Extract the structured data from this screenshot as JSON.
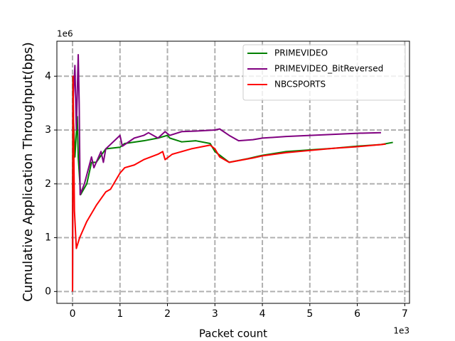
{
  "chart_data": {
    "type": "line",
    "x_label": "Packet count",
    "y_label": "Cumulative Application Throughput(bps)",
    "x_offset_label": "1e3",
    "y_offset_label": "1e6",
    "xlim": [
      -0.33,
      7.1
    ],
    "ylim": [
      -0.22,
      4.65
    ],
    "xticks": [
      0,
      1,
      2,
      3,
      4,
      5,
      6,
      7
    ],
    "yticks": [
      0,
      1,
      2,
      3,
      4
    ],
    "grid": true,
    "legend": "upper right",
    "series": [
      {
        "name": "PRIMEVIDEO",
        "color": "#008000",
        "x": [
          0,
          0.005,
          0.02,
          0.05,
          0.1,
          0.12,
          0.17,
          0.3,
          0.4,
          0.5,
          0.7,
          1.0,
          1.1,
          1.5,
          1.8,
          2.0,
          2.05,
          2.3,
          2.6,
          2.9,
          3.0,
          3.3,
          3.7,
          4.0,
          4.5,
          5.0,
          5.5,
          6.0,
          6.5,
          6.75
        ],
        "values": [
          0,
          4.0,
          3.2,
          2.5,
          3.25,
          2.5,
          1.8,
          2.0,
          2.4,
          2.4,
          2.65,
          2.68,
          2.75,
          2.8,
          2.85,
          2.9,
          2.85,
          2.78,
          2.8,
          2.75,
          2.6,
          2.4,
          2.47,
          2.53,
          2.6,
          2.63,
          2.66,
          2.7,
          2.73,
          2.77
        ]
      },
      {
        "name": "PRIMEVIDEO_BitReversed",
        "color": "#800080",
        "x": [
          0,
          0.01,
          0.05,
          0.08,
          0.12,
          0.14,
          0.16,
          0.25,
          0.4,
          0.45,
          0.6,
          0.65,
          0.7,
          1.0,
          1.05,
          1.3,
          1.5,
          1.6,
          1.8,
          1.95,
          2.05,
          2.3,
          2.6,
          3.0,
          3.1,
          3.3,
          3.5,
          3.8,
          4.0,
          4.5,
          5.0,
          5.5,
          6.0,
          6.5
        ],
        "values": [
          0,
          3.5,
          4.2,
          3.0,
          4.4,
          3.5,
          1.8,
          2.0,
          2.5,
          2.3,
          2.6,
          2.4,
          2.65,
          2.9,
          2.7,
          2.85,
          2.9,
          2.95,
          2.85,
          2.97,
          2.9,
          2.97,
          2.98,
          3.0,
          3.02,
          2.9,
          2.8,
          2.82,
          2.85,
          2.88,
          2.9,
          2.92,
          2.94,
          2.95
        ]
      },
      {
        "name": "NBCSPORTS",
        "color": "#ff0000",
        "x": [
          0,
          0.01,
          0.04,
          0.08,
          0.15,
          0.2,
          0.3,
          0.5,
          0.7,
          0.8,
          1.0,
          1.1,
          1.3,
          1.5,
          1.8,
          1.9,
          1.95,
          2.1,
          2.5,
          2.9,
          3.0,
          3.1,
          3.3,
          3.8,
          4.0,
          4.5,
          5.0,
          5.5,
          6.0,
          6.5,
          6.6
        ],
        "values": [
          0,
          4.0,
          1.5,
          0.8,
          1.0,
          1.1,
          1.3,
          1.6,
          1.85,
          1.9,
          2.2,
          2.3,
          2.35,
          2.45,
          2.55,
          2.6,
          2.45,
          2.55,
          2.65,
          2.72,
          2.65,
          2.5,
          2.4,
          2.48,
          2.52,
          2.58,
          2.62,
          2.66,
          2.69,
          2.73,
          2.74
        ]
      }
    ]
  }
}
